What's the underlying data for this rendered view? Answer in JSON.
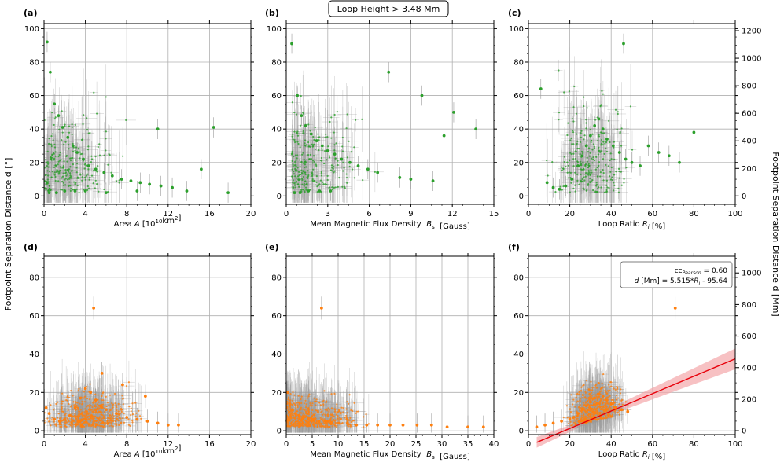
{
  "figure": {
    "top_title": "Loop Height  >  3.48 Mm",
    "left_ylabel": "Footpoint Separation Distance d [°]",
    "right_ylabel": "Footpoint Separation Distance d [Mm]",
    "colors": {
      "top_points": "#2ca02c",
      "bottom_points": "#ff7f0e",
      "errorbars": "#9a9a9a",
      "fit_line": "#e8000b",
      "fit_band": "#f4a6aa",
      "grid": "#b0b0b0"
    }
  },
  "chart_data": [
    {
      "panel": "(a)",
      "type": "scatter",
      "title": "",
      "xlabel": "Area A [10¹⁰km²]",
      "ylabel": "Footpoint Separation Distance d [°]",
      "xlim": [
        0,
        20
      ],
      "ylim": [
        -5,
        103
      ],
      "xticks": [
        0,
        4,
        8,
        12,
        16,
        20
      ],
      "yticks": [
        0,
        20,
        40,
        60,
        80,
        100
      ],
      "color": "#2ca02c",
      "grid": true,
      "series": [
        {
          "name": "loops",
          "x": [
            0.3,
            0.6,
            1.0,
            1.4,
            1.8,
            2.3,
            2.8,
            3.2,
            3.8,
            4.3,
            5.0,
            5.8,
            6.6,
            7.5,
            8.4,
            9.3,
            10.2,
            11.3,
            12.4,
            13.8,
            15.2,
            16.4,
            17.8,
            0.5,
            1.2,
            2.0,
            3.0,
            4.0,
            6.0,
            9.0,
            11.0
          ],
          "y": [
            92,
            74,
            55,
            48,
            41,
            35,
            30,
            26,
            22,
            18,
            16,
            14,
            12,
            10,
            9,
            8,
            7,
            6,
            5,
            3,
            16,
            41,
            2,
            2,
            2,
            3,
            3,
            3,
            2,
            3,
            40
          ]
        }
      ]
    },
    {
      "panel": "(b)",
      "type": "scatter",
      "title": "",
      "xlabel": "Mean Magnetic Flux Density |Bs| [Gauss]",
      "ylabel": "",
      "xlim": [
        0,
        15
      ],
      "ylim": [
        -5,
        103
      ],
      "xticks": [
        0,
        3,
        6,
        9,
        12,
        15
      ],
      "yticks": [
        0,
        20,
        40,
        60,
        80,
        100
      ],
      "color": "#2ca02c",
      "grid": true,
      "series": [
        {
          "name": "loops",
          "x": [
            0.4,
            0.8,
            1.1,
            1.4,
            1.8,
            2.2,
            2.6,
            3.0,
            3.5,
            4.0,
            4.6,
            5.2,
            5.9,
            6.6,
            7.4,
            8.2,
            9.0,
            9.8,
            10.6,
            11.4,
            12.1,
            13.7,
            0.6,
            1.0,
            1.6,
            2.4,
            3.2
          ],
          "y": [
            91,
            60,
            48,
            42,
            37,
            33,
            30,
            27,
            25,
            22,
            20,
            18,
            16,
            14,
            74,
            11,
            10,
            60,
            9,
            36,
            50,
            40,
            2,
            2,
            3,
            3,
            3
          ]
        }
      ]
    },
    {
      "panel": "(c)",
      "type": "scatter",
      "title": "",
      "xlabel": "Loop Ratio Ri [%]",
      "ylabel": "Footpoint Separation Distance d [Mm]",
      "xlim": [
        0,
        100
      ],
      "ylim": [
        -5,
        103
      ],
      "xticks": [
        0,
        20,
        40,
        60,
        80,
        100
      ],
      "yticks": [
        0,
        20,
        40,
        60,
        80,
        100
      ],
      "right_axis": {
        "label": "Footpoint Separation Distance d [Mm]",
        "ticks": [
          0,
          200,
          400,
          600,
          800,
          1000,
          1200
        ]
      },
      "color": "#2ca02c",
      "grid": true,
      "series": [
        {
          "name": "loops",
          "x": [
            6,
            9,
            12,
            15,
            18,
            21,
            24,
            26,
            28,
            30,
            32,
            34,
            36,
            38,
            41,
            44,
            47,
            50,
            54,
            58,
            63,
            68,
            73,
            80,
            46
          ],
          "y": [
            64,
            8,
            5,
            4,
            6,
            10,
            18,
            24,
            30,
            36,
            42,
            46,
            40,
            34,
            30,
            26,
            22,
            20,
            18,
            30,
            26,
            24,
            20,
            38,
            91
          ]
        }
      ]
    },
    {
      "panel": "(d)",
      "type": "scatter",
      "title": "",
      "xlabel": "Area A [10¹⁰km²]",
      "ylabel": "",
      "xlim": [
        0,
        20
      ],
      "ylim": [
        -2,
        91
      ],
      "xticks": [
        0,
        4,
        8,
        12,
        16,
        20
      ],
      "yticks": [
        0,
        20,
        40,
        60,
        80
      ],
      "color": "#ff7f0e",
      "grid": true,
      "series": [
        {
          "name": "loops",
          "x": [
            0.2,
            0.5,
            1.0,
            1.5,
            2.0,
            2.5,
            3.0,
            3.5,
            4.0,
            4.5,
            5.0,
            5.5,
            6.0,
            7.0,
            8.0,
            9.0,
            10.0,
            11.0,
            12.0,
            13.0,
            4.8,
            5.6,
            7.6,
            9.8
          ],
          "y": [
            12,
            9,
            6,
            5,
            6,
            8,
            12,
            17,
            22,
            20,
            16,
            13,
            11,
            9,
            7,
            6,
            5,
            4,
            3,
            3,
            64,
            30,
            24,
            18
          ]
        }
      ]
    },
    {
      "panel": "(e)",
      "type": "scatter",
      "title": "",
      "xlabel": "Mean Magnetic Flux Density |Bs| [Gauss]",
      "ylabel": "",
      "xlim": [
        0,
        40
      ],
      "ylim": [
        -2,
        91
      ],
      "xticks": [
        0,
        5,
        10,
        15,
        20,
        25,
        30,
        35,
        40
      ],
      "yticks": [
        0,
        20,
        40,
        60,
        80
      ],
      "color": "#ff7f0e",
      "grid": true,
      "series": [
        {
          "name": "loops",
          "x": [
            0.3,
            0.7,
            1.2,
            1.8,
            2.5,
            3.3,
            4.2,
            5.2,
            6.3,
            7.5,
            8.8,
            10.2,
            11.8,
            13.5,
            15.5,
            17.6,
            20.0,
            22.5,
            25.2,
            28.0,
            31.0,
            35.0,
            38.0,
            6.8
          ],
          "y": [
            20,
            14,
            11,
            9,
            8,
            7,
            6,
            6,
            5,
            5,
            4,
            4,
            4,
            3,
            3,
            3,
            3,
            3,
            3,
            3,
            2,
            2,
            2,
            64
          ]
        }
      ]
    },
    {
      "panel": "(f)",
      "type": "scatter",
      "title": "",
      "xlabel": "Loop Ratio Ri [%]",
      "ylabel": "",
      "xlim": [
        0,
        100
      ],
      "ylim": [
        -2,
        91
      ],
      "xticks": [
        0,
        20,
        40,
        60,
        80,
        100
      ],
      "yticks": [
        0,
        20,
        40,
        60,
        80
      ],
      "right_axis": {
        "label": "Footpoint Separation Distance d [Mm]",
        "ticks": [
          0,
          200,
          400,
          600,
          800,
          1000
        ]
      },
      "color": "#ff7f0e",
      "grid": true,
      "series": [
        {
          "name": "loops",
          "x": [
            4,
            8,
            12,
            16,
            20,
            22,
            24,
            26,
            28,
            30,
            32,
            34,
            36,
            38,
            40,
            42,
            45,
            48,
            71
          ],
          "y": [
            2,
            3,
            4,
            5,
            6,
            7,
            9,
            11,
            13,
            15,
            17,
            19,
            18,
            16,
            14,
            12,
            11,
            10,
            64
          ]
        }
      ],
      "fit": {
        "cc_label": "cc_Pearson = 0.60",
        "cc_prefix": "cc",
        "cc_sub": "Pearson",
        "cc_value": "= 0.60",
        "equation": "d [Mm] = 5.515*Ri - 95.64",
        "eq_prefix": "d",
        "eq_mid": "[Mm] = 5.515*",
        "eq_var": "R",
        "eq_sub": "i",
        "eq_tail": " - 95.64",
        "slope_mm": 5.515,
        "intercept_mm": -95.64,
        "x_range": [
          4,
          100
        ]
      }
    }
  ]
}
